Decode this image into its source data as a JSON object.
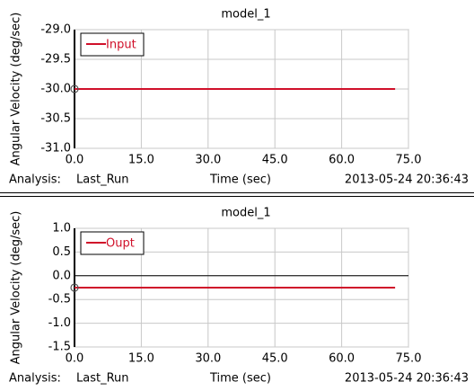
{
  "chart_data": [
    {
      "type": "line",
      "title": "model_1",
      "x_label": "Time (sec)",
      "y_label": "Angular Velocity (deg/sec)",
      "analysis_label": "Analysis:",
      "run": "Last_Run",
      "timestamp": "2013-05-24 20:36:43",
      "x": [
        0,
        72
      ],
      "series": [
        {
          "name": "Input",
          "color": "#d0102a",
          "values": [
            -30,
            -30
          ]
        }
      ],
      "xlim": [
        0,
        75
      ],
      "xticks": [
        {
          "value": 0,
          "label": "0.0"
        },
        {
          "value": 15,
          "label": "15.0"
        },
        {
          "value": 30,
          "label": "30.0"
        },
        {
          "value": 45,
          "label": "45.0"
        },
        {
          "value": 60,
          "label": "60.0"
        },
        {
          "value": 75,
          "label": "75.0"
        }
      ],
      "ylim": [
        -31,
        -29
      ],
      "yticks": [
        {
          "value": -31,
          "label": "-31.0"
        },
        {
          "value": -30.5,
          "label": "-30.5"
        },
        {
          "value": -30,
          "label": "-30.0"
        },
        {
          "value": -29.5,
          "label": "-29.5"
        },
        {
          "value": -29,
          "label": "-29.0"
        }
      ],
      "grid": true,
      "legend": "upper left",
      "zero_line": false,
      "start_marker": true
    },
    {
      "type": "line",
      "title": "model_1",
      "x_label": "Time (sec)",
      "y_label": "Angular Velocity (deg/sec)",
      "analysis_label": "Analysis:",
      "run": "Last_Run",
      "timestamp": "2013-05-24 20:36:43",
      "x": [
        0,
        72
      ],
      "series": [
        {
          "name": "Oupt",
          "color": "#d0102a",
          "values": [
            -0.25,
            -0.25
          ]
        }
      ],
      "xlim": [
        0,
        75
      ],
      "xticks": [
        {
          "value": 0,
          "label": "0.0"
        },
        {
          "value": 15,
          "label": "15.0"
        },
        {
          "value": 30,
          "label": "30.0"
        },
        {
          "value": 45,
          "label": "45.0"
        },
        {
          "value": 60,
          "label": "60.0"
        },
        {
          "value": 75,
          "label": "75.0"
        }
      ],
      "ylim": [
        -1.5,
        1
      ],
      "yticks": [
        {
          "value": -1.5,
          "label": "-1.5"
        },
        {
          "value": -1,
          "label": "-1.0"
        },
        {
          "value": -0.5,
          "label": "-0.5"
        },
        {
          "value": 0,
          "label": "0.0"
        },
        {
          "value": 0.5,
          "label": "0.5"
        },
        {
          "value": 1,
          "label": "1.0"
        }
      ],
      "grid": true,
      "legend": "upper left",
      "zero_line": true,
      "start_marker": true
    }
  ]
}
